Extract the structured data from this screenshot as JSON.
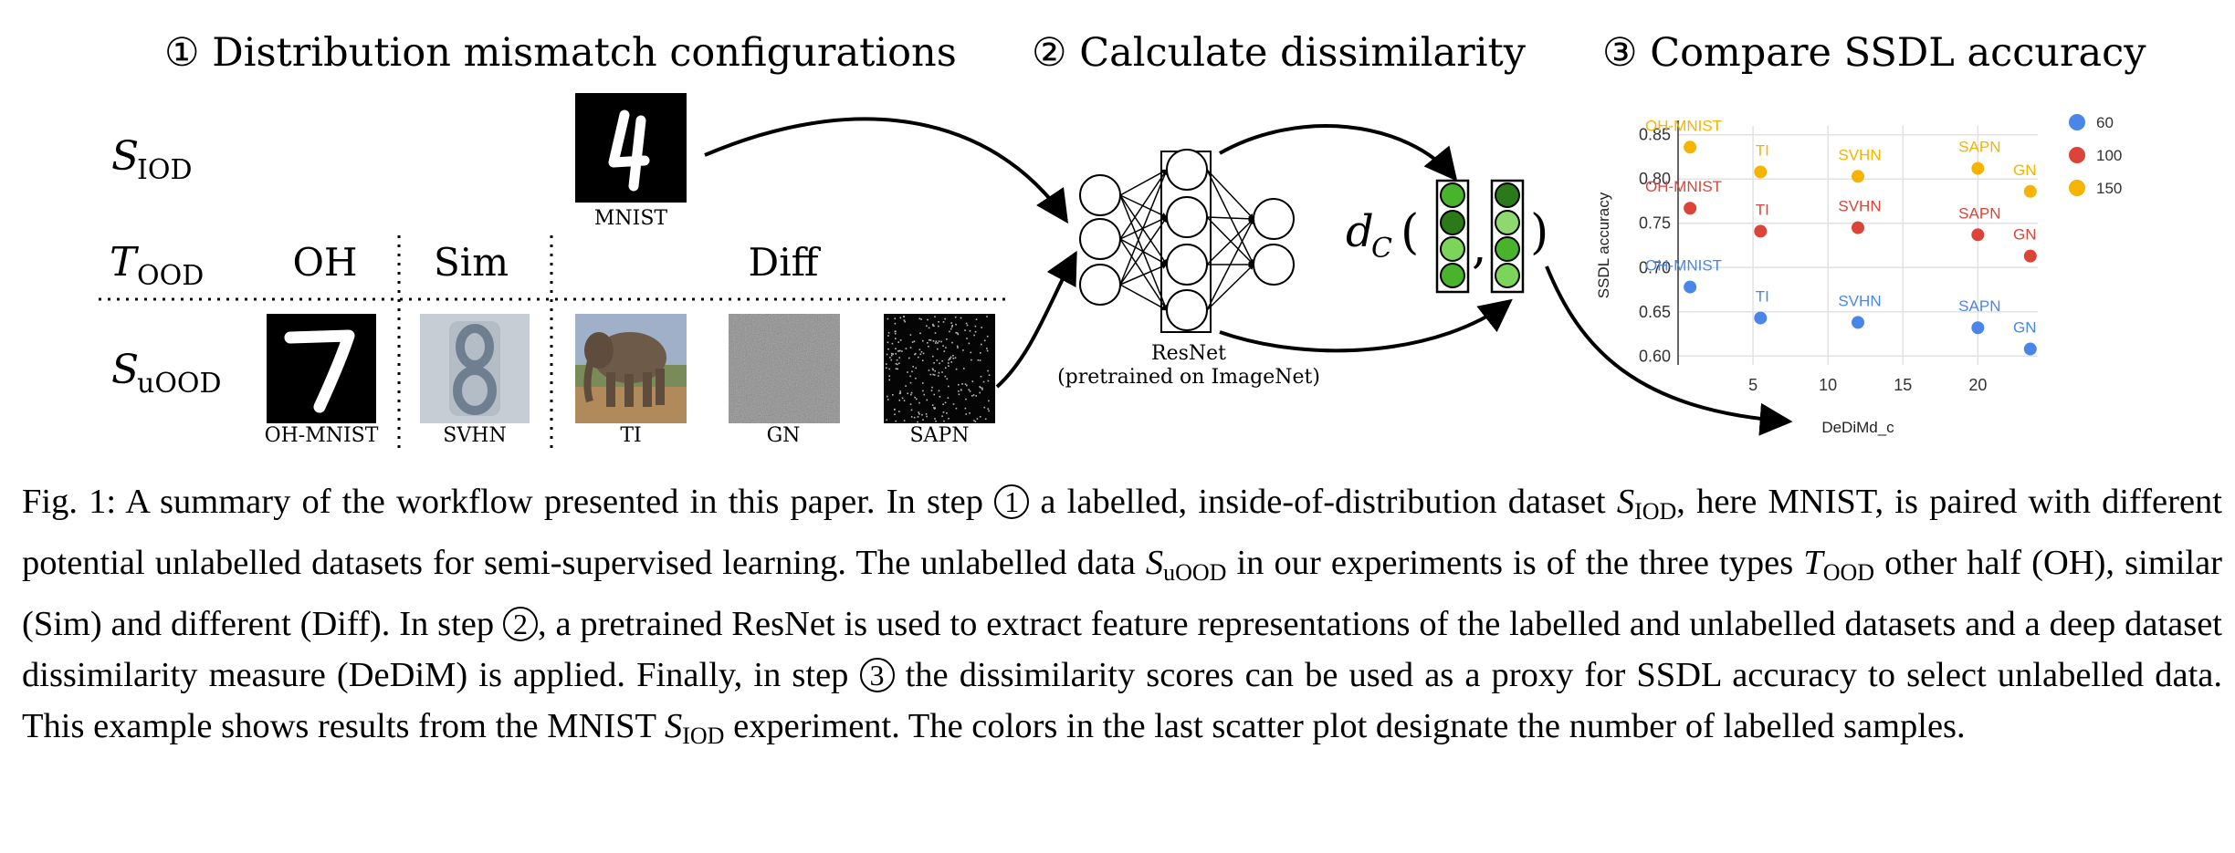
{
  "steps": {
    "step1": "① Distribution mismatch configurations",
    "step2": "② Calculate dissimilarity",
    "step3": "③ Compare SSDL accuracy"
  },
  "rows": {
    "s_iod": {
      "main": "S",
      "sub": "IOD"
    },
    "t_ood": {
      "main": "T",
      "sub": "OOD"
    },
    "s_uood": {
      "main": "S",
      "sub": "uOOD"
    }
  },
  "columns": {
    "oh": "OH",
    "sim": "Sim",
    "diff": "Diff"
  },
  "images": {
    "mnist": "MNIST",
    "oh_mnist": "OH-MNIST",
    "svhn": "SVHN",
    "ti": "TI",
    "gn": "GN",
    "sapn": "SAPN"
  },
  "network": {
    "name": "ResNet",
    "note": "(pretrained on ImageNet)"
  },
  "distance": {
    "symbol": "d",
    "sub": "C",
    "open": "(",
    "comma": ",",
    "close": ")"
  },
  "chart_data": {
    "type": "scatter",
    "xlabel": "DeDiMd_c",
    "ylabel": "SSDL accuracy",
    "xlim": [
      0,
      24
    ],
    "ylim": [
      0.59,
      0.86
    ],
    "xticks": [
      5,
      10,
      15,
      20
    ],
    "yticks": [
      0.6,
      0.65,
      0.7,
      0.75,
      0.8,
      0.85
    ],
    "grid": true,
    "legend_position": "right",
    "series": [
      {
        "name": "60",
        "color": "#4a86e8",
        "points": [
          {
            "label": "OH-MNIST",
            "x": 0.8,
            "y": 0.678
          },
          {
            "label": "TI",
            "x": 5.5,
            "y": 0.643
          },
          {
            "label": "SVHN",
            "x": 12,
            "y": 0.638
          },
          {
            "label": "SAPN",
            "x": 20,
            "y": 0.632
          },
          {
            "label": "GN",
            "x": 23.5,
            "y": 0.608
          }
        ]
      },
      {
        "name": "100",
        "color": "#db4437",
        "points": [
          {
            "label": "OH-MNIST",
            "x": 0.8,
            "y": 0.767
          },
          {
            "label": "TI",
            "x": 5.5,
            "y": 0.741
          },
          {
            "label": "SVHN",
            "x": 12,
            "y": 0.745
          },
          {
            "label": "SAPN",
            "x": 20,
            "y": 0.737
          },
          {
            "label": "GN",
            "x": 23.5,
            "y": 0.713
          }
        ]
      },
      {
        "name": "150",
        "color": "#f4b400",
        "points": [
          {
            "label": "OH-MNIST",
            "x": 0.8,
            "y": 0.836
          },
          {
            "label": "TI",
            "x": 5.5,
            "y": 0.808
          },
          {
            "label": "SVHN",
            "x": 12,
            "y": 0.803
          },
          {
            "label": "SAPN",
            "x": 20,
            "y": 0.812
          },
          {
            "label": "GN",
            "x": 23.5,
            "y": 0.786
          }
        ]
      }
    ]
  },
  "caption": {
    "fig": "Fig. 1:",
    "t1": " A summary of the workflow presented in this paper. In step ",
    "c1": "1",
    "t2": " a labelled, inside-of-distribution dataset ",
    "s1": "S",
    "s1sub": "IOD",
    "t3": ", here MNIST, is paired with different potential unlabelled datasets for semi-supervised learning. The unlabelled data ",
    "s2": "S",
    "s2sub": "uOOD",
    "t4": " in our experiments is of the three types ",
    "s3": "T",
    "s3sub": "OOD",
    "t5": " other half (OH), similar (Sim) and different (Diff). In step ",
    "c2": "2",
    "t6": ", a pretrained ResNet is used to extract feature representations of the labelled and unlabelled datasets and a deep dataset dissimilarity measure (DeDiM) is applied. Finally, in step ",
    "c3": "3",
    "t7": " the dissimilarity scores can be used as a proxy for SSDL accuracy to select unlabelled data. This example shows results from the MNIST ",
    "s4": "S",
    "s4sub": "IOD",
    "t8": " experiment. The colors in the last scatter plot designate the number of labelled samples."
  }
}
